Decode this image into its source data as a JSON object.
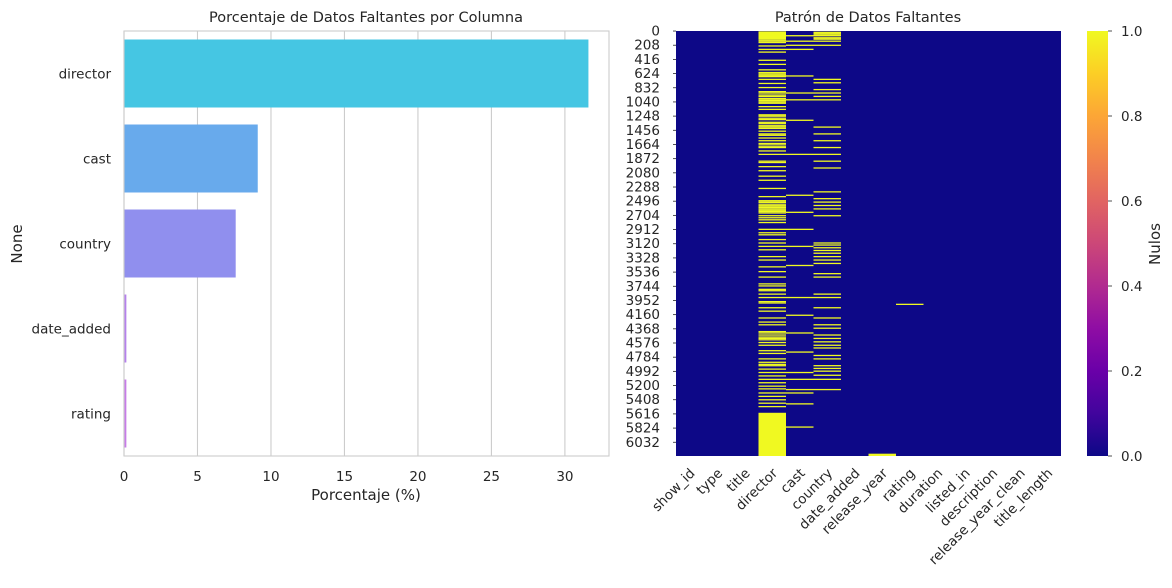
{
  "chart_data": [
    {
      "type": "bar",
      "orientation": "horizontal",
      "title": "Porcentaje de Datos Faltantes por Columna",
      "xlabel": "Porcentaje (%)",
      "ylabel": "None",
      "categories": [
        "director",
        "cast",
        "country",
        "date_added",
        "rating"
      ],
      "values": [
        31.6,
        9.1,
        7.6,
        0.16,
        0.16
      ],
      "colors": [
        "#45C6E3",
        "#68AAEC",
        "#908FEE",
        "#B581EC",
        "#C77CE8"
      ],
      "xlim": [
        0,
        33
      ],
      "xticks": [
        0,
        5,
        10,
        15,
        20,
        25,
        30
      ],
      "grid": "vertical"
    },
    {
      "type": "heatmap",
      "title": "Patrón de Datos Faltantes",
      "colormap": "plasma",
      "colors": {
        "missing": "#F0F921",
        "present": "#0D0887"
      },
      "columns": [
        "show_id",
        "type",
        "title",
        "director",
        "cast",
        "country",
        "date_added",
        "release_year",
        "rating",
        "duration",
        "listed_in",
        "description",
        "release_year_clean",
        "title_length"
      ],
      "row_count": 6234,
      "yticks": [
        "0",
        "208",
        "416",
        "624",
        "832",
        "1040",
        "1248",
        "1456",
        "1664",
        "1872",
        "2080",
        "2288",
        "2496",
        "2704",
        "2912",
        "3120",
        "3328",
        "3536",
        "3744",
        "3952",
        "4160",
        "4368",
        "4576",
        "4784",
        "4992",
        "5200",
        "5408",
        "5616",
        "5824",
        "6032"
      ],
      "missing_rows": {
        "director": [
          5,
          12,
          18,
          25,
          33,
          40,
          48,
          60,
          70,
          85,
          100,
          120,
          140,
          160,
          210,
          260,
          300,
          420,
          480,
          560,
          600,
          620,
          640,
          660,
          700,
          760,
          820,
          880,
          900,
          930,
          950,
          980,
          1000,
          1010,
          1030,
          1050,
          1100,
          1140,
          1220,
          1240,
          1270,
          1290,
          1330,
          1350,
          1380,
          1400,
          1420,
          1460,
          1500,
          1520,
          1560,
          1600,
          1640,
          1650,
          1680,
          1700,
          1750,
          1800,
          1900,
          1920,
          1980,
          2040,
          2120,
          2180,
          2300,
          2420,
          2480,
          2500,
          2510,
          2540,
          2560,
          2580,
          2600,
          2620,
          2640,
          2660,
          2700,
          2730,
          2760,
          2800,
          2900,
          2950,
          2980,
          3050,
          3100,
          3150,
          3200,
          3300,
          3350,
          3450,
          3520,
          3600,
          3700,
          3730,
          3780,
          3800,
          3850,
          3900,
          3960,
          3980,
          4050,
          4100,
          4200,
          4260,
          4300,
          4400,
          4420,
          4450,
          4480,
          4500,
          4520,
          4560,
          4600,
          4680,
          4720,
          4800,
          4850,
          4880,
          4900,
          4950,
          5000,
          5050,
          5100,
          5150,
          5200,
          5240,
          5300,
          5350,
          5400,
          5450,
          5500
        ],
        "cast": [
          60,
          140,
          200,
          260,
          650,
          900,
          1000,
          1300,
          1800,
          2400,
          2650,
          2900,
          3150,
          3430,
          3900,
          4160,
          4420,
          4700,
          5000,
          5100,
          5250,
          5300,
          5460,
          5800
        ],
        "country": [
          10,
          30,
          50,
          60,
          90,
          110,
          140,
          200,
          700,
          750,
          850,
          900,
          950,
          1000,
          1400,
          1500,
          1600,
          1700,
          1800,
          1900,
          2000,
          2350,
          2450,
          2500,
          2550,
          2600,
          2700,
          3100,
          3130,
          3170,
          3210,
          3250,
          3300,
          3350,
          3400,
          3550,
          3600,
          3850,
          3900,
          4050,
          4200,
          4300,
          4350,
          4450,
          4500,
          4550,
          4600,
          4640,
          4750,
          4800,
          4900,
          4940,
          4980,
          5040,
          5100,
          5250
        ],
        "rating": [
          4000
        ]
      },
      "missing_ranges": {
        "director": [
          [
            5600,
            6233
          ]
        ],
        "release_year": [
          [
            6200,
            6233
          ]
        ]
      },
      "colorbar": {
        "label": "Nulos",
        "ticks": [
          "0.0",
          "0.2",
          "0.4",
          "0.6",
          "0.8",
          "1.0"
        ],
        "range": [
          0,
          1
        ]
      }
    }
  ]
}
